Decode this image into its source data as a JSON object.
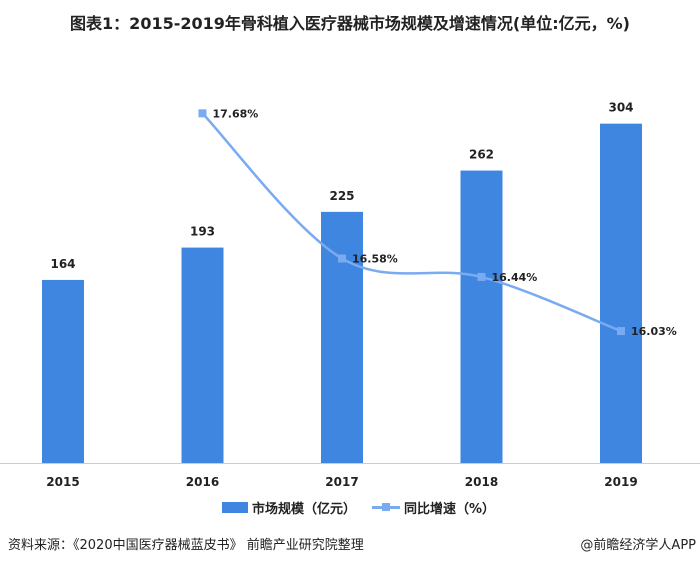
{
  "title": "图表1：2015-2019年骨科植入医疗器械市场规模及增速情况(单位:亿元，%)",
  "chart_data": {
    "type": "bar+line",
    "categories": [
      "2015",
      "2016",
      "2017",
      "2018",
      "2019"
    ],
    "series": [
      {
        "name": "市场规模（亿元）",
        "type": "bar",
        "values": [
          164,
          193,
          225,
          262,
          304
        ],
        "color": "#3f86e0",
        "labels": [
          "164",
          "193",
          "225",
          "262",
          "304"
        ],
        "axis": "left"
      },
      {
        "name": "同比增速（%）",
        "type": "line",
        "values": [
          null,
          17.68,
          16.58,
          16.44,
          16.03
        ],
        "color": "#7aaaf0",
        "labels": [
          "",
          "17.68%",
          "16.58%",
          "16.44%",
          "16.03%"
        ],
        "axis": "right"
      }
    ],
    "ylim_left": [
      0,
      370
    ],
    "ylim_right": [
      15.03,
      18.16
    ],
    "grid": false,
    "legend": "bottom"
  },
  "source": "资料来源：《2020中国医疗器械蓝皮书》 前瞻产业研究院整理",
  "credit": "@前瞻经济学人APP"
}
